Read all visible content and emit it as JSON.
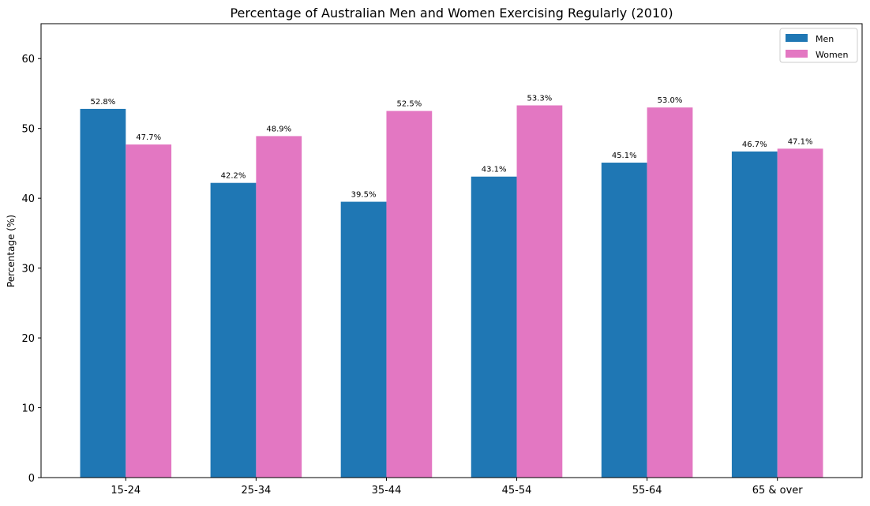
{
  "chart_data": {
    "type": "bar",
    "title": "Percentage of Australian Men and Women Exercising Regularly (2010)",
    "xlabel": "",
    "ylabel": "Percentage (%)",
    "categories": [
      "15-24",
      "25-34",
      "35-44",
      "45-54",
      "55-64",
      "65 & over"
    ],
    "series": [
      {
        "name": "Men",
        "color": "#1f77b4",
        "values": [
          52.8,
          42.2,
          39.5,
          43.1,
          45.1,
          46.7
        ],
        "labels": [
          "52.8%",
          "42.2%",
          "39.5%",
          "43.1%",
          "45.1%",
          "46.7%"
        ]
      },
      {
        "name": "Women",
        "color": "#e377c2",
        "values": [
          47.7,
          48.9,
          52.5,
          53.3,
          53.0,
          47.1
        ],
        "labels": [
          "47.7%",
          "48.9%",
          "52.5%",
          "53.3%",
          "53.0%",
          "47.1%"
        ]
      }
    ],
    "ylim": [
      0,
      65
    ],
    "yticks": [
      "0",
      "10",
      "20",
      "30",
      "40",
      "50",
      "60"
    ],
    "grid": false,
    "legend_placement": "top-right"
  }
}
